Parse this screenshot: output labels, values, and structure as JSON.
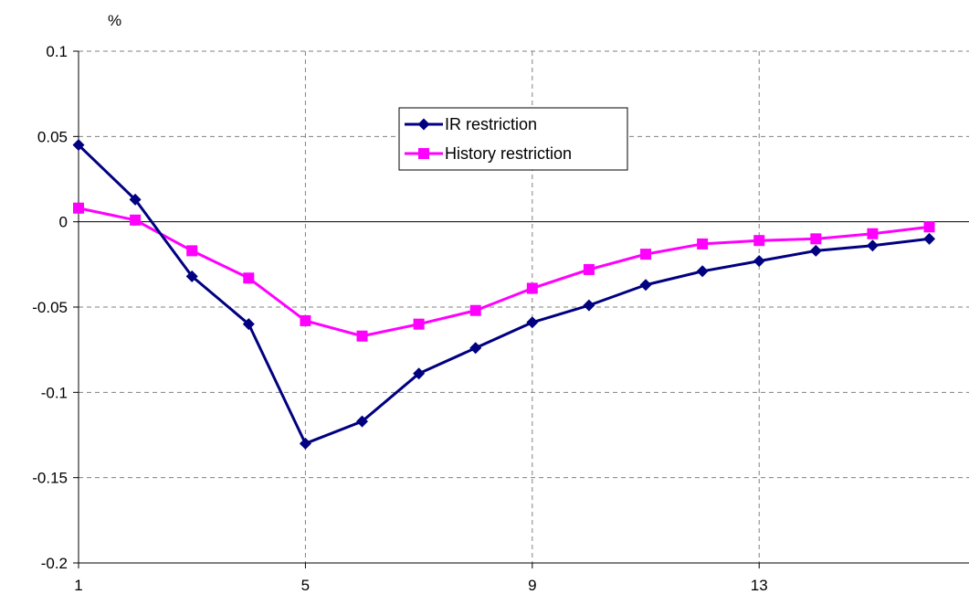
{
  "chart_data": {
    "type": "line",
    "ylabel": "%",
    "x": [
      1,
      2,
      3,
      4,
      5,
      6,
      7,
      8,
      9,
      10,
      11,
      12,
      13,
      14,
      15,
      16
    ],
    "xticks": [
      "1",
      "5",
      "9",
      "13"
    ],
    "yticks": [
      "0.1",
      "0.05",
      "0",
      "-0.05",
      "-0.1",
      "-0.15",
      "-0.2"
    ],
    "ylim": [
      -0.2,
      0.1
    ],
    "grid": true,
    "legend": "top-center",
    "series": [
      {
        "name": "IR restriction",
        "color": "#000080",
        "marker": "diamond",
        "values": [
          0.045,
          0.013,
          -0.032,
          -0.06,
          -0.13,
          -0.117,
          -0.089,
          -0.074,
          -0.059,
          -0.049,
          -0.037,
          -0.029,
          -0.023,
          -0.017,
          -0.014,
          -0.01
        ]
      },
      {
        "name": "History restriction",
        "color": "#ff00ff",
        "marker": "square",
        "values": [
          0.008,
          0.001,
          -0.017,
          -0.033,
          -0.058,
          -0.067,
          -0.06,
          -0.052,
          -0.039,
          -0.028,
          -0.019,
          -0.013,
          -0.011,
          -0.01,
          -0.007,
          -0.003
        ]
      }
    ]
  }
}
